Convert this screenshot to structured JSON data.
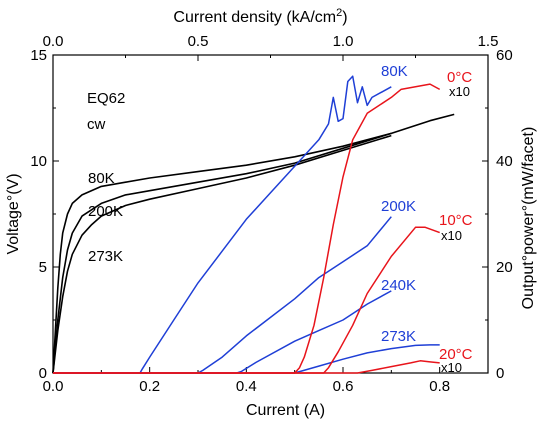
{
  "chart_data": {
    "type": "line",
    "axes": {
      "x_bottom": {
        "label": "Current  (A)",
        "range": [
          0,
          0.9
        ],
        "ticks": [
          0,
          0.2,
          0.4,
          0.6,
          0.8
        ],
        "tick_labels": [
          "0.0",
          "0.2",
          "0.4",
          "0.6",
          "0.8"
        ]
      },
      "x_top": {
        "label": "Current density (kA/cm",
        "label_sup": "2",
        "label_close": ")",
        "range": [
          0,
          1.5
        ],
        "ticks": [
          0,
          0.5,
          1.0,
          1.5
        ],
        "tick_labels": [
          "0.0",
          "0.5",
          "1.0",
          "1.5"
        ]
      },
      "y_left": {
        "label": "Voltage°(V)",
        "range": [
          0,
          15
        ],
        "ticks": [
          0,
          5,
          10,
          15
        ],
        "tick_labels": [
          "0",
          "5",
          "10",
          "15"
        ]
      },
      "y_right": {
        "label": "Output°power°(mW/facet)",
        "range": [
          0,
          60
        ],
        "ticks": [
          0,
          20,
          40,
          60
        ],
        "tick_labels": [
          "0",
          "20",
          "40",
          "60"
        ]
      }
    },
    "annotations": [
      {
        "text": "EQ62",
        "color": "#000000",
        "size": "normal"
      },
      {
        "text": "cw",
        "color": "#000000",
        "size": "normal"
      },
      {
        "text": "80K",
        "color": "#000000",
        "size": "normal"
      },
      {
        "text": "200K",
        "color": "#000000",
        "size": "normal"
      },
      {
        "text": "273K",
        "color": "#000000",
        "size": "normal"
      },
      {
        "text": "80K",
        "color": "#1f3fd6",
        "size": "normal"
      },
      {
        "text": "200K",
        "color": "#1f3fd6",
        "size": "normal"
      },
      {
        "text": "240K",
        "color": "#1f3fd6",
        "size": "normal"
      },
      {
        "text": "273K",
        "color": "#1f3fd6",
        "size": "normal"
      },
      {
        "text": "0°C",
        "color": "#e8141b",
        "size": "normal"
      },
      {
        "text": "x10",
        "color": "#000000",
        "size": "small"
      },
      {
        "text": "10°C",
        "color": "#e8141b",
        "size": "normal"
      },
      {
        "text": "x10",
        "color": "#000000",
        "size": "small"
      },
      {
        "text": "20°C",
        "color": "#e8141b",
        "size": "normal"
      },
      {
        "text": "x10",
        "color": "#000000",
        "size": "small"
      }
    ],
    "series": [
      {
        "axis": "voltage",
        "color": "#000000",
        "points": [
          [
            0,
            0
          ],
          [
            0.005,
            2.0
          ],
          [
            0.01,
            4.0
          ],
          [
            0.015,
            5.6
          ],
          [
            0.02,
            6.6
          ],
          [
            0.03,
            7.5
          ],
          [
            0.04,
            8.0
          ],
          [
            0.06,
            8.4
          ],
          [
            0.1,
            8.8
          ],
          [
            0.15,
            9.0
          ],
          [
            0.2,
            9.2
          ],
          [
            0.3,
            9.5
          ],
          [
            0.4,
            9.8
          ],
          [
            0.5,
            10.2
          ],
          [
            0.6,
            10.7
          ],
          [
            0.7,
            11.3
          ],
          [
            0.78,
            11.9
          ],
          [
            0.83,
            12.2
          ]
        ]
      },
      {
        "axis": "voltage",
        "color": "#000000",
        "points": [
          [
            0,
            0
          ],
          [
            0.01,
            2.5
          ],
          [
            0.02,
            4.5
          ],
          [
            0.03,
            5.8
          ],
          [
            0.04,
            6.6
          ],
          [
            0.06,
            7.4
          ],
          [
            0.1,
            8.0
          ],
          [
            0.15,
            8.4
          ],
          [
            0.2,
            8.6
          ],
          [
            0.3,
            9.0
          ],
          [
            0.4,
            9.4
          ],
          [
            0.5,
            9.9
          ],
          [
            0.6,
            10.6
          ],
          [
            0.7,
            11.3
          ]
        ]
      },
      {
        "axis": "voltage",
        "color": "#000000",
        "points": [
          [
            0,
            0
          ],
          [
            0.01,
            2.0
          ],
          [
            0.02,
            3.6
          ],
          [
            0.03,
            4.8
          ],
          [
            0.04,
            5.6
          ],
          [
            0.06,
            6.5
          ],
          [
            0.08,
            7.0
          ],
          [
            0.1,
            7.4
          ],
          [
            0.15,
            7.9
          ],
          [
            0.2,
            8.2
          ],
          [
            0.3,
            8.7
          ],
          [
            0.4,
            9.2
          ],
          [
            0.5,
            9.8
          ],
          [
            0.6,
            10.5
          ],
          [
            0.7,
            11.2
          ]
        ]
      },
      {
        "axis": "power",
        "color": "#1f3fd6",
        "points": [
          [
            0,
            0
          ],
          [
            0.18,
            0
          ],
          [
            0.185,
            0.8
          ],
          [
            0.2,
            3
          ],
          [
            0.25,
            10
          ],
          [
            0.3,
            17
          ],
          [
            0.35,
            23
          ],
          [
            0.4,
            29
          ],
          [
            0.45,
            34
          ],
          [
            0.5,
            39
          ],
          [
            0.55,
            44
          ],
          [
            0.57,
            47
          ],
          [
            0.58,
            52
          ],
          [
            0.59,
            47.5
          ],
          [
            0.6,
            48
          ],
          [
            0.61,
            55
          ],
          [
            0.62,
            56
          ],
          [
            0.63,
            51
          ],
          [
            0.64,
            54
          ],
          [
            0.65,
            50.5
          ],
          [
            0.66,
            52
          ],
          [
            0.7,
            54
          ]
        ]
      },
      {
        "axis": "power",
        "color": "#1f3fd6",
        "points": [
          [
            0,
            0
          ],
          [
            0.3,
            0
          ],
          [
            0.31,
            0.5
          ],
          [
            0.35,
            3
          ],
          [
            0.4,
            7
          ],
          [
            0.5,
            14
          ],
          [
            0.55,
            18
          ],
          [
            0.6,
            21
          ],
          [
            0.65,
            24
          ],
          [
            0.7,
            29.5
          ]
        ]
      },
      {
        "axis": "power",
        "color": "#1f3fd6",
        "points": [
          [
            0,
            0
          ],
          [
            0.38,
            0
          ],
          [
            0.39,
            0.3
          ],
          [
            0.42,
            2
          ],
          [
            0.5,
            6
          ],
          [
            0.55,
            8
          ],
          [
            0.6,
            10
          ],
          [
            0.65,
            13
          ],
          [
            0.7,
            15.5
          ]
        ]
      },
      {
        "axis": "power",
        "color": "#1f3fd6",
        "points": [
          [
            0,
            0
          ],
          [
            0.5,
            0
          ],
          [
            0.55,
            1.3
          ],
          [
            0.6,
            2.6
          ],
          [
            0.65,
            3.8
          ],
          [
            0.7,
            4.6
          ],
          [
            0.75,
            5.2
          ],
          [
            0.78,
            5.3
          ],
          [
            0.8,
            5.3
          ]
        ]
      },
      {
        "axis": "power",
        "color": "#e8141b",
        "points": [
          [
            0,
            0
          ],
          [
            0.5,
            0
          ],
          [
            0.51,
            1
          ],
          [
            0.52,
            3
          ],
          [
            0.54,
            9
          ],
          [
            0.56,
            18
          ],
          [
            0.58,
            28
          ],
          [
            0.6,
            37
          ],
          [
            0.62,
            44
          ],
          [
            0.65,
            49
          ],
          [
            0.7,
            52
          ],
          [
            0.72,
            53.5
          ],
          [
            0.75,
            54
          ],
          [
            0.78,
            54.5
          ],
          [
            0.8,
            53.5
          ]
        ]
      },
      {
        "axis": "power",
        "color": "#e8141b",
        "points": [
          [
            0,
            0
          ],
          [
            0.56,
            0
          ],
          [
            0.57,
            1
          ],
          [
            0.59,
            4
          ],
          [
            0.62,
            9
          ],
          [
            0.65,
            15
          ],
          [
            0.7,
            22
          ],
          [
            0.75,
            27.5
          ],
          [
            0.77,
            27.5
          ],
          [
            0.8,
            26.5
          ]
        ]
      },
      {
        "axis": "power",
        "color": "#e8141b",
        "points": [
          [
            0,
            0
          ],
          [
            0.63,
            0
          ],
          [
            0.66,
            0.5
          ],
          [
            0.7,
            1.2
          ],
          [
            0.74,
            1.9
          ],
          [
            0.76,
            2.3
          ],
          [
            0.78,
            2.1
          ],
          [
            0.8,
            1.9
          ]
        ]
      }
    ]
  }
}
